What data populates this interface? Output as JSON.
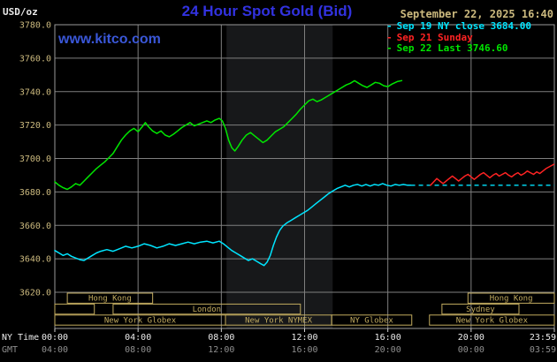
{
  "header": {
    "units": "USD/oz",
    "title": "24 Hour Spot Gold (Bid)",
    "datetime": "September 22, 2025 16:40",
    "watermark": "www.kitco.com"
  },
  "legend": {
    "items": [
      {
        "marker": "-",
        "label": "Sep 19 NY close 3684.00",
        "color": "#00e5ff"
      },
      {
        "marker": "-",
        "label": "Sep 21 Sunday",
        "color": "#ff2323"
      },
      {
        "marker": "-",
        "label": "Sep 22 Last 3746.60",
        "color": "#00e600"
      }
    ]
  },
  "axes": {
    "grid_color": "#7f7f7f",
    "border_color": "#9a9a9a",
    "y_label_color": "#cbb97e",
    "y_ticks": [
      {
        "value": 3780,
        "label": "3780.0"
      },
      {
        "value": 3760,
        "label": "3760.0"
      },
      {
        "value": 3740,
        "label": "3740.0"
      },
      {
        "value": 3720,
        "label": "3720.0"
      },
      {
        "value": 3700,
        "label": "3700.0"
      },
      {
        "value": 3680,
        "label": "3680.0"
      },
      {
        "value": 3660,
        "label": "3660.0"
      },
      {
        "value": 3640,
        "label": "3640.0"
      },
      {
        "value": 3620,
        "label": "3620.0"
      }
    ],
    "x_rows": [
      {
        "name": "NY Time",
        "color": "#ececec",
        "ticks": [
          {
            "t": 0,
            "label": "00:00"
          },
          {
            "t": 4,
            "label": "04:00"
          },
          {
            "t": 8,
            "label": "08:00"
          },
          {
            "t": 12,
            "label": "12:00"
          },
          {
            "t": 16,
            "label": "16:00"
          },
          {
            "t": 20,
            "label": "20:00"
          },
          {
            "t": 24,
            "label": "23:59"
          }
        ]
      },
      {
        "name": "GMT",
        "color": "#8f8f8f",
        "ticks": [
          {
            "t": 0,
            "label": "04:00"
          },
          {
            "t": 4,
            "label": "08:00"
          },
          {
            "t": 8,
            "label": "12:00"
          },
          {
            "t": 12,
            "label": "16:00"
          },
          {
            "t": 16,
            "label": "20:00"
          },
          {
            "t": 20,
            "label": "00:00"
          },
          {
            "t": 24,
            "label": "03:59"
          }
        ]
      }
    ]
  },
  "sessions": {
    "color": "#c2ab5f",
    "rows": [
      {
        "boxes": [
          {
            "label": "Hong Kong",
            "from": 0.6,
            "to": 4.7
          },
          {
            "label": "Hong Kong",
            "from": 19.85,
            "to": 24
          }
        ]
      },
      {
        "boxes": [
          {
            "label": "",
            "from": 0,
            "to": 1.9
          },
          {
            "label": "London",
            "from": 2.8,
            "to": 11.8
          },
          {
            "label": "Sydney",
            "from": 18.6,
            "to": 22.3
          }
        ]
      },
      {
        "boxes": [
          {
            "label": "New York Globex",
            "from": 0,
            "to": 8.2
          },
          {
            "label": "New York NYMEX",
            "from": 8.2,
            "to": 13.3
          },
          {
            "label": "NY Globex",
            "from": 13.3,
            "to": 17.15
          },
          {
            "label": "New York Globex",
            "from": 18,
            "to": 24
          }
        ]
      }
    ]
  },
  "chart_data": {
    "type": "line",
    "title": "24 Hour Spot Gold (Bid)",
    "ylabel": "USD/oz",
    "xlabel": "NY Time (hours)",
    "xlim": [
      0,
      24
    ],
    "ylim": [
      3620,
      3780
    ],
    "last_price": 3746.6,
    "ny_close": 3684.0,
    "nymex_band": {
      "from": 8.25,
      "to": 13.35,
      "color": "#17181a"
    },
    "reference_line": {
      "name": "Sep 19 NY close",
      "value": 3684.0,
      "from": 17.1,
      "to": 24,
      "color": "#00e5ff",
      "style": "dashed"
    },
    "series": [
      {
        "id": "sep19",
        "name": "Sep 19 NY close",
        "color": "#00e5ff",
        "points": [
          [
            0.0,
            3645
          ],
          [
            0.2,
            3643.5
          ],
          [
            0.4,
            3642
          ],
          [
            0.6,
            3643
          ],
          [
            0.8,
            3641.5
          ],
          [
            1.0,
            3640.5
          ],
          [
            1.2,
            3639.5
          ],
          [
            1.4,
            3639
          ],
          [
            1.6,
            3640.5
          ],
          [
            1.8,
            3642
          ],
          [
            2.0,
            3643.5
          ],
          [
            2.2,
            3644.5
          ],
          [
            2.5,
            3645.5
          ],
          [
            2.8,
            3644.5
          ],
          [
            3.1,
            3646
          ],
          [
            3.4,
            3647.5
          ],
          [
            3.7,
            3646.5
          ],
          [
            4.0,
            3647.5
          ],
          [
            4.3,
            3649
          ],
          [
            4.6,
            3648
          ],
          [
            4.9,
            3646.5
          ],
          [
            5.2,
            3647.5
          ],
          [
            5.5,
            3649
          ],
          [
            5.8,
            3648
          ],
          [
            6.1,
            3649
          ],
          [
            6.4,
            3650
          ],
          [
            6.7,
            3649
          ],
          [
            7.0,
            3650
          ],
          [
            7.3,
            3650.5
          ],
          [
            7.6,
            3649.5
          ],
          [
            7.9,
            3650.5
          ],
          [
            8.1,
            3649
          ],
          [
            8.3,
            3647
          ],
          [
            8.5,
            3645
          ],
          [
            8.7,
            3643.5
          ],
          [
            8.9,
            3642
          ],
          [
            9.1,
            3640.5
          ],
          [
            9.3,
            3639
          ],
          [
            9.5,
            3640
          ],
          [
            9.7,
            3638.5
          ],
          [
            9.9,
            3637
          ],
          [
            10.05,
            3636
          ],
          [
            10.2,
            3638
          ],
          [
            10.35,
            3642
          ],
          [
            10.5,
            3648
          ],
          [
            10.65,
            3653
          ],
          [
            10.8,
            3657
          ],
          [
            10.95,
            3659.5
          ],
          [
            11.15,
            3661.5
          ],
          [
            11.35,
            3663
          ],
          [
            11.55,
            3664.5
          ],
          [
            11.75,
            3666
          ],
          [
            11.95,
            3667.5
          ],
          [
            12.15,
            3669
          ],
          [
            12.35,
            3671
          ],
          [
            12.55,
            3673
          ],
          [
            12.75,
            3675
          ],
          [
            12.95,
            3677
          ],
          [
            13.15,
            3679
          ],
          [
            13.35,
            3680.5
          ],
          [
            13.55,
            3682
          ],
          [
            13.75,
            3683
          ],
          [
            13.95,
            3684
          ],
          [
            14.15,
            3683
          ],
          [
            14.35,
            3684
          ],
          [
            14.55,
            3684.5
          ],
          [
            14.75,
            3683.5
          ],
          [
            14.95,
            3684.5
          ],
          [
            15.15,
            3683.5
          ],
          [
            15.35,
            3684.5
          ],
          [
            15.55,
            3684
          ],
          [
            15.75,
            3685
          ],
          [
            15.95,
            3684
          ],
          [
            16.15,
            3683.5
          ],
          [
            16.35,
            3684.5
          ],
          [
            16.55,
            3684
          ],
          [
            16.75,
            3684.5
          ],
          [
            16.95,
            3684
          ],
          [
            17.1,
            3684
          ]
        ]
      },
      {
        "id": "sep21",
        "name": "Sep 21 Sunday",
        "color": "#ff2323",
        "points": [
          [
            18.05,
            3684
          ],
          [
            18.2,
            3686
          ],
          [
            18.35,
            3688
          ],
          [
            18.5,
            3686.5
          ],
          [
            18.65,
            3685
          ],
          [
            18.8,
            3686.5
          ],
          [
            18.95,
            3688
          ],
          [
            19.1,
            3689.5
          ],
          [
            19.25,
            3688
          ],
          [
            19.4,
            3686.5
          ],
          [
            19.55,
            3688
          ],
          [
            19.7,
            3689.5
          ],
          [
            19.85,
            3690.5
          ],
          [
            20.0,
            3689
          ],
          [
            20.15,
            3687.5
          ],
          [
            20.3,
            3689
          ],
          [
            20.45,
            3690.5
          ],
          [
            20.6,
            3691.5
          ],
          [
            20.75,
            3690
          ],
          [
            20.9,
            3688.5
          ],
          [
            21.05,
            3690
          ],
          [
            21.2,
            3691
          ],
          [
            21.35,
            3689.5
          ],
          [
            21.5,
            3690.5
          ],
          [
            21.65,
            3691.5
          ],
          [
            21.8,
            3690
          ],
          [
            21.95,
            3689
          ],
          [
            22.1,
            3690.5
          ],
          [
            22.25,
            3691.5
          ],
          [
            22.4,
            3690
          ],
          [
            22.55,
            3691
          ],
          [
            22.7,
            3692.5
          ],
          [
            22.85,
            3691.5
          ],
          [
            23.0,
            3690.5
          ],
          [
            23.15,
            3692
          ],
          [
            23.3,
            3691
          ],
          [
            23.45,
            3692.5
          ],
          [
            23.6,
            3694
          ],
          [
            23.75,
            3695
          ],
          [
            23.9,
            3696
          ],
          [
            23.98,
            3696.5
          ]
        ]
      },
      {
        "id": "sep22",
        "name": "Sep 22 Last",
        "color": "#00e600",
        "points": [
          [
            0.0,
            3686
          ],
          [
            0.2,
            3684
          ],
          [
            0.4,
            3682.5
          ],
          [
            0.6,
            3681.5
          ],
          [
            0.8,
            3683
          ],
          [
            1.0,
            3685
          ],
          [
            1.2,
            3684
          ],
          [
            1.4,
            3686.5
          ],
          [
            1.6,
            3689
          ],
          [
            1.8,
            3691.5
          ],
          [
            2.0,
            3694
          ],
          [
            2.2,
            3696
          ],
          [
            2.4,
            3698
          ],
          [
            2.6,
            3700.5
          ],
          [
            2.8,
            3703
          ],
          [
            3.0,
            3707
          ],
          [
            3.2,
            3711
          ],
          [
            3.4,
            3714
          ],
          [
            3.6,
            3716.5
          ],
          [
            3.8,
            3718
          ],
          [
            4.0,
            3716
          ],
          [
            4.2,
            3719
          ],
          [
            4.35,
            3721.5
          ],
          [
            4.5,
            3719
          ],
          [
            4.7,
            3716.5
          ],
          [
            4.9,
            3715
          ],
          [
            5.1,
            3716.5
          ],
          [
            5.3,
            3714
          ],
          [
            5.5,
            3713
          ],
          [
            5.7,
            3714.5
          ],
          [
            5.9,
            3716.5
          ],
          [
            6.1,
            3718.5
          ],
          [
            6.3,
            3720
          ],
          [
            6.5,
            3721.5
          ],
          [
            6.7,
            3719.5
          ],
          [
            6.9,
            3720.5
          ],
          [
            7.1,
            3721.5
          ],
          [
            7.3,
            3722.5
          ],
          [
            7.5,
            3721.5
          ],
          [
            7.7,
            3723
          ],
          [
            7.9,
            3724
          ],
          [
            8.05,
            3722.5
          ],
          [
            8.2,
            3718
          ],
          [
            8.35,
            3711
          ],
          [
            8.5,
            3706.5
          ],
          [
            8.65,
            3704.5
          ],
          [
            8.8,
            3707
          ],
          [
            9.0,
            3711
          ],
          [
            9.2,
            3714
          ],
          [
            9.4,
            3715.5
          ],
          [
            9.6,
            3713.5
          ],
          [
            9.8,
            3711.5
          ],
          [
            10.0,
            3709.5
          ],
          [
            10.2,
            3711
          ],
          [
            10.4,
            3713.5
          ],
          [
            10.6,
            3716
          ],
          [
            10.8,
            3717.5
          ],
          [
            11.0,
            3719
          ],
          [
            11.2,
            3721.5
          ],
          [
            11.4,
            3724
          ],
          [
            11.6,
            3726.5
          ],
          [
            11.8,
            3729.5
          ],
          [
            12.0,
            3732
          ],
          [
            12.2,
            3734.5
          ],
          [
            12.4,
            3735.5
          ],
          [
            12.6,
            3734
          ],
          [
            12.8,
            3735
          ],
          [
            13.0,
            3736.5
          ],
          [
            13.2,
            3738
          ],
          [
            13.4,
            3739.5
          ],
          [
            13.6,
            3741
          ],
          [
            13.8,
            3742.5
          ],
          [
            14.0,
            3744
          ],
          [
            14.2,
            3745
          ],
          [
            14.4,
            3746.5
          ],
          [
            14.6,
            3745
          ],
          [
            14.8,
            3743.5
          ],
          [
            15.0,
            3742.5
          ],
          [
            15.2,
            3744
          ],
          [
            15.4,
            3745.5
          ],
          [
            15.6,
            3745
          ],
          [
            15.8,
            3743.5
          ],
          [
            16.0,
            3743
          ],
          [
            16.2,
            3744.5
          ],
          [
            16.45,
            3746
          ],
          [
            16.67,
            3746.6
          ]
        ]
      }
    ]
  }
}
